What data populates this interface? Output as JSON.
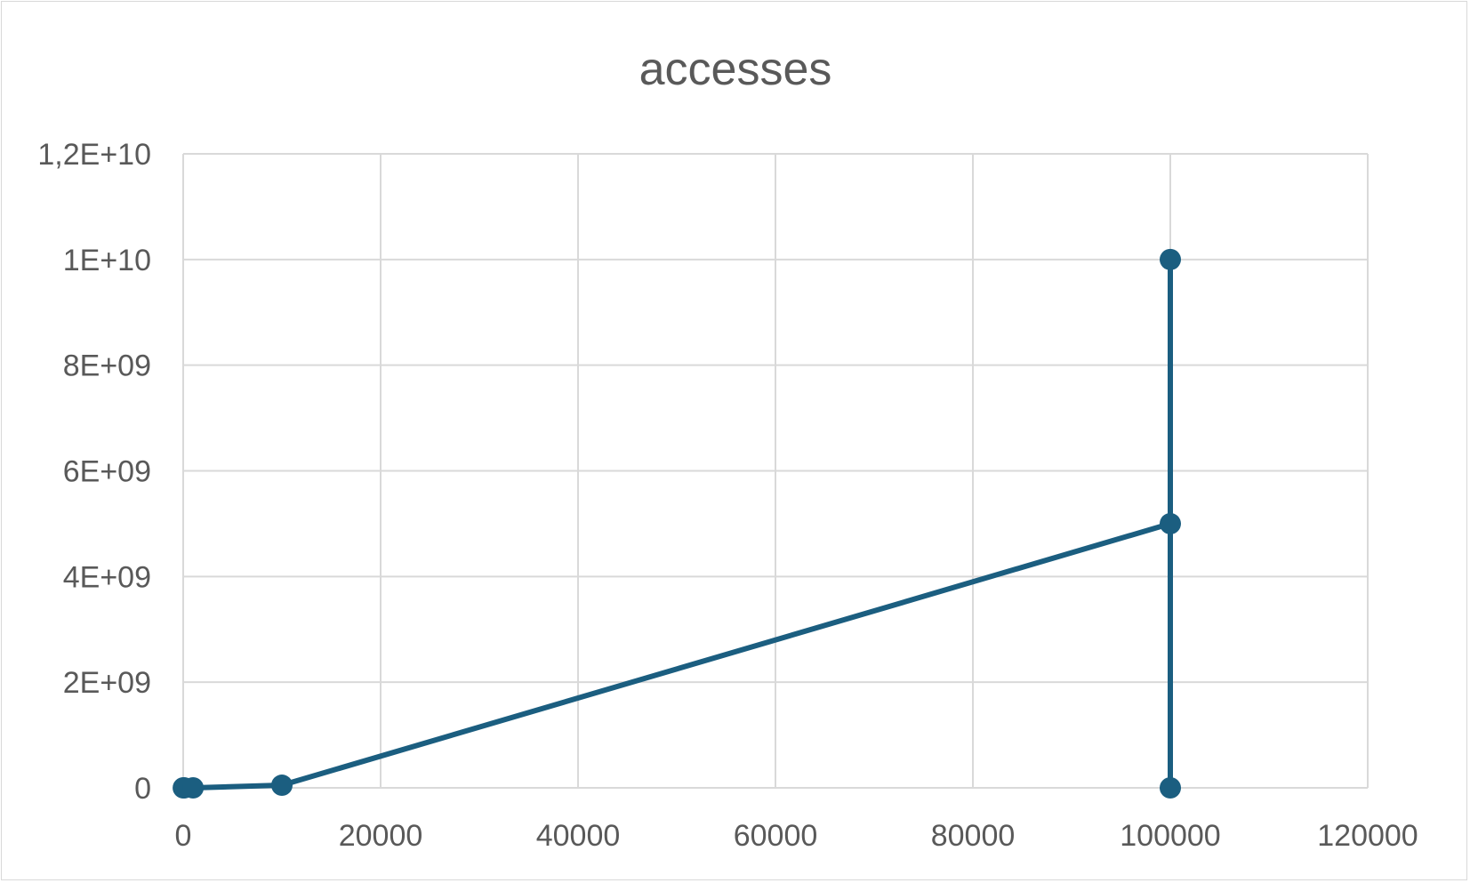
{
  "chart_data": {
    "type": "scatter",
    "title": "accesses",
    "xlabel": "",
    "ylabel": "",
    "xlim": [
      0,
      120000
    ],
    "ylim": [
      0,
      12000000000
    ],
    "x_ticks": [
      0,
      20000,
      40000,
      60000,
      80000,
      100000,
      120000
    ],
    "x_tick_labels": [
      "0",
      "20000",
      "40000",
      "60000",
      "80000",
      "100000",
      "120000"
    ],
    "y_ticks": [
      0,
      2000000000,
      4000000000,
      6000000000,
      8000000000,
      10000000000,
      12000000000
    ],
    "y_tick_labels": [
      "0",
      "2E+09",
      "4E+09",
      "6E+09",
      "8E+09",
      "1E+10",
      "1,2E+10"
    ],
    "grid": true,
    "legend": "none",
    "series": [
      {
        "color": "#1b5e80",
        "line": true,
        "markers": true,
        "points": [
          {
            "x": 10,
            "y": 0
          },
          {
            "x": 100,
            "y": 0
          },
          {
            "x": 1000,
            "y": 0
          },
          {
            "x": 10000,
            "y": 50000000
          },
          {
            "x": 100000,
            "y": 5000000000
          },
          {
            "x": 100000,
            "y": 0
          },
          {
            "x": 100000,
            "y": 10000000000
          }
        ]
      }
    ]
  }
}
